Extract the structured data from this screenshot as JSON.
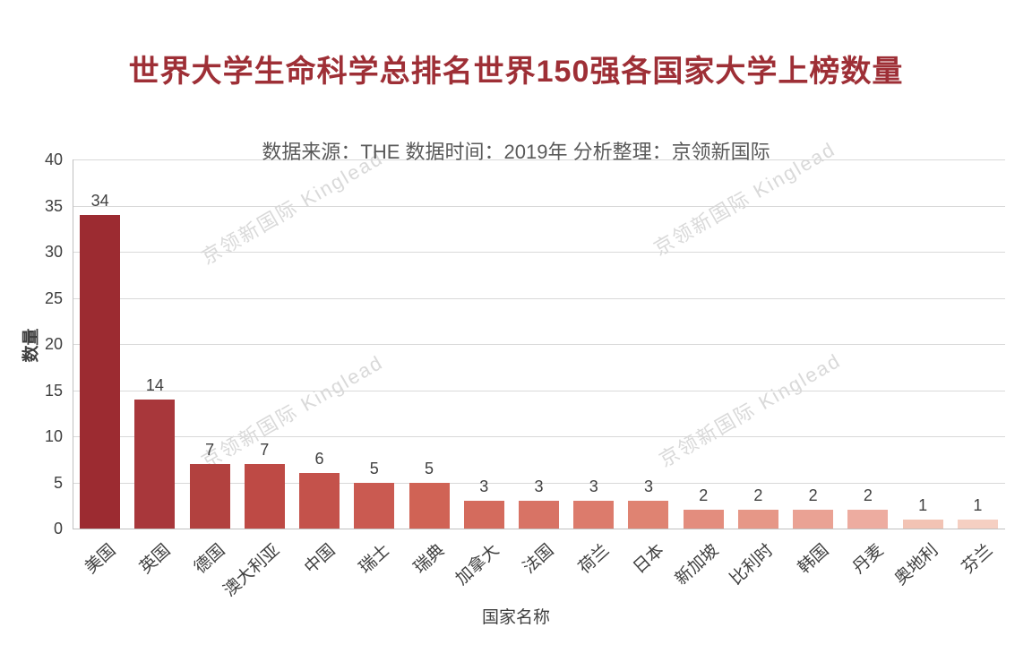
{
  "page": {
    "background": "#ffffff"
  },
  "chart_data": {
    "type": "bar",
    "title": "世界大学生命科学总排名世界150强各国家大学上榜数量",
    "subtitle": "数据来源：THE  数据时间：2019年  分析整理：京领新国际",
    "xlabel": "国家名称",
    "ylabel": "数量",
    "ylim": [
      0,
      40
    ],
    "ytick_step": 5,
    "grid": true,
    "legend": "none",
    "categories": [
      "美国",
      "英国",
      "德国",
      "澳大利亚",
      "中国",
      "瑞士",
      "瑞典",
      "加拿大",
      "法国",
      "荷兰",
      "日本",
      "新加坡",
      "比利时",
      "韩国",
      "丹麦",
      "奥地利",
      "芬兰"
    ],
    "values": [
      34,
      14,
      7,
      7,
      6,
      5,
      5,
      3,
      3,
      3,
      3,
      2,
      2,
      2,
      2,
      1,
      1
    ],
    "bar_colors": [
      "#9c2b31",
      "#a8373b",
      "#b2413f",
      "#be4a45",
      "#c4524b",
      "#ca5a51",
      "#d06355",
      "#d46b5d",
      "#d87365",
      "#dc7b6c",
      "#df8372",
      "#e38d7e",
      "#e69787",
      "#eaa294",
      "#edaca0",
      "#f2c3b4",
      "#f5cfc2"
    ],
    "title_color": "#9e2f36",
    "subtitle_color": "#595959",
    "watermark": {
      "text": "京领新国际 Kinglead",
      "color": "#d9d9d9"
    }
  }
}
